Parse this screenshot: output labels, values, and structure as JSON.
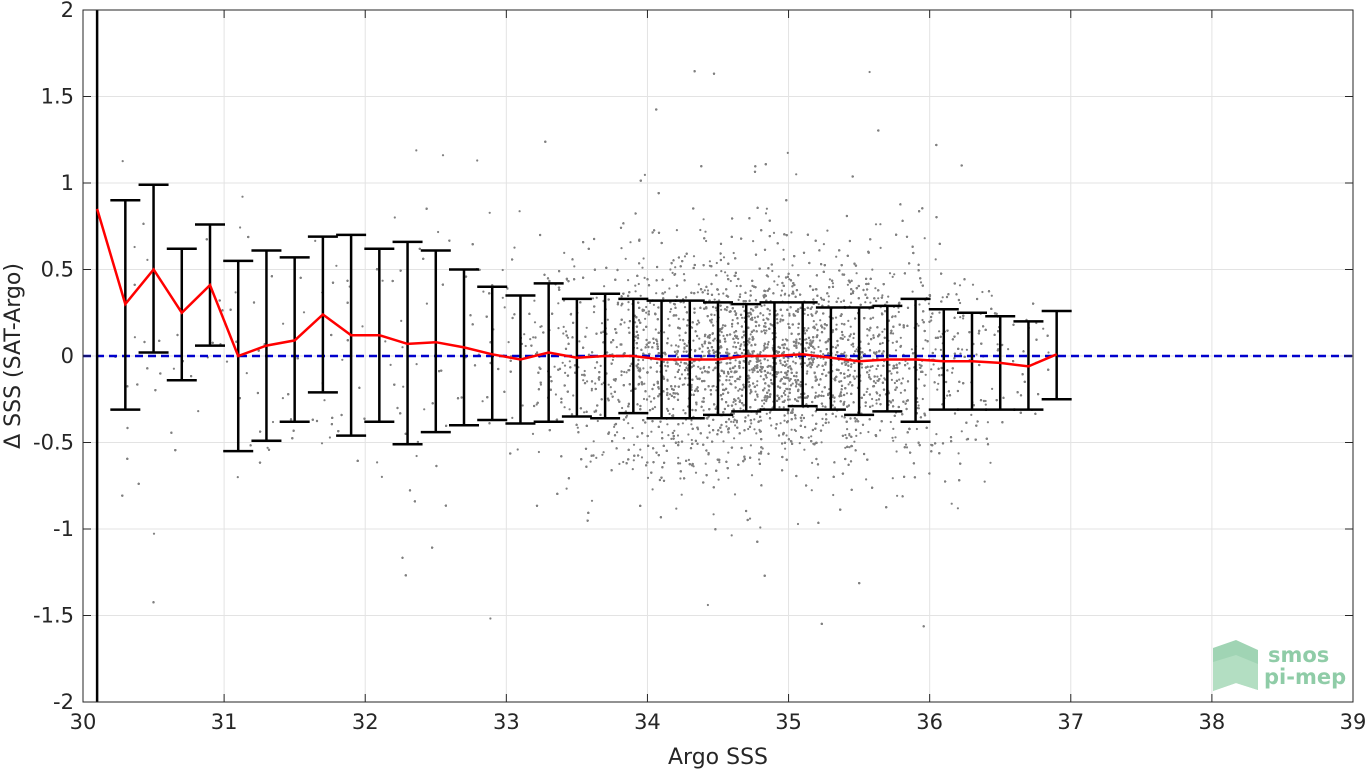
{
  "chart_data": {
    "type": "scatter",
    "title": "",
    "xlabel": "Argo SSS",
    "ylabel": "Δ SSS (SAT-Argo)",
    "xlim": [
      30,
      39
    ],
    "ylim": [
      -2,
      2
    ],
    "xticks": [
      30,
      31,
      32,
      33,
      34,
      35,
      36,
      37,
      38,
      39
    ],
    "yticks": [
      -2,
      -1.5,
      -1,
      -0.5,
      0,
      0.5,
      1,
      1.5,
      2
    ],
    "grid": true,
    "reference_line": {
      "y": 0,
      "style": "dashed",
      "color": "#0000cc"
    },
    "vertical_line": {
      "x": 30.1,
      "color": "#000000"
    },
    "scatter": {
      "color": "#808080",
      "density_center_x": 34.8,
      "density_center_y": -0.03,
      "approximate": true
    },
    "series": [
      {
        "name": "mean",
        "color": "#ff0000",
        "x": [
          30.1,
          30.3,
          30.5,
          30.7,
          30.9,
          31.1,
          31.3,
          31.5,
          31.7,
          31.9,
          32.1,
          32.3,
          32.5,
          32.7,
          32.9,
          33.1,
          33.3,
          33.5,
          33.7,
          33.9,
          34.1,
          34.3,
          34.5,
          34.7,
          34.9,
          35.1,
          35.3,
          35.5,
          35.7,
          35.9,
          36.1,
          36.3,
          36.5,
          36.7,
          36.9
        ],
        "y": [
          0.85,
          0.3,
          0.5,
          0.25,
          0.41,
          0.0,
          0.06,
          0.09,
          0.24,
          0.12,
          0.12,
          0.07,
          0.08,
          0.05,
          0.01,
          -0.02,
          0.02,
          -0.01,
          0.0,
          0.0,
          -0.02,
          -0.02,
          -0.02,
          0.0,
          0.0,
          0.01,
          -0.01,
          -0.03,
          -0.02,
          -0.02,
          -0.03,
          -0.03,
          -0.04,
          -0.06,
          0.01
        ]
      },
      {
        "name": "std",
        "color": "#000000",
        "x": [
          30.3,
          30.5,
          30.7,
          30.9,
          31.1,
          31.3,
          31.5,
          31.7,
          31.9,
          32.1,
          32.3,
          32.5,
          32.7,
          32.9,
          33.1,
          33.3,
          33.5,
          33.7,
          33.9,
          34.1,
          34.3,
          34.5,
          34.7,
          34.9,
          35.1,
          35.3,
          35.5,
          35.7,
          35.9,
          36.1,
          36.3,
          36.5,
          36.7,
          36.9
        ],
        "upper": [
          0.9,
          0.99,
          0.62,
          0.76,
          0.55,
          0.61,
          0.57,
          0.69,
          0.7,
          0.62,
          0.66,
          0.61,
          0.5,
          0.4,
          0.35,
          0.42,
          0.33,
          0.36,
          0.33,
          0.32,
          0.32,
          0.31,
          0.3,
          0.31,
          0.31,
          0.28,
          0.28,
          0.29,
          0.33,
          0.27,
          0.25,
          0.23,
          0.2,
          0.26
        ],
        "lower": [
          -0.31,
          0.02,
          -0.14,
          0.06,
          -0.55,
          -0.49,
          -0.38,
          -0.21,
          -0.46,
          -0.38,
          -0.51,
          -0.44,
          -0.4,
          -0.37,
          -0.39,
          -0.38,
          -0.35,
          -0.36,
          -0.33,
          -0.36,
          -0.36,
          -0.34,
          -0.32,
          -0.31,
          -0.29,
          -0.31,
          -0.34,
          -0.32,
          -0.38,
          -0.31,
          -0.31,
          -0.31,
          -0.31,
          -0.25
        ]
      }
    ]
  },
  "logo": {
    "line1": "smos",
    "line2": "pi-mep",
    "color": "#8fcca7"
  }
}
